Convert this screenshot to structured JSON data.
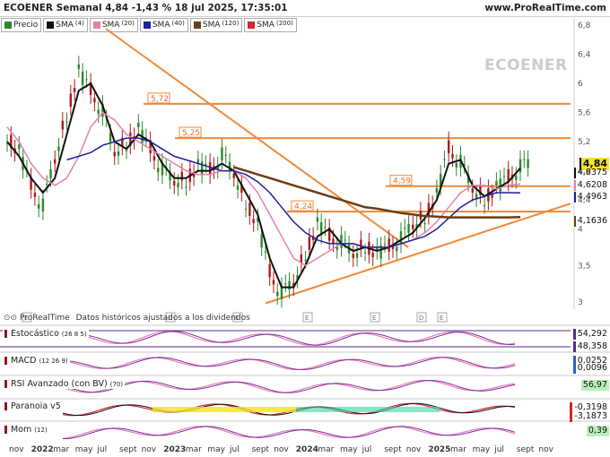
{
  "header": {
    "title": "ECOENER Semanal 4,84 -1,43 % 18 jul 2025, 17:35:01",
    "site": "www.ProRealTime.com"
  },
  "legend": [
    {
      "label": "Precio",
      "sup": "",
      "color": "#2a8a2a"
    },
    {
      "label": "SMA",
      "sup": "(4)",
      "color": "#111111"
    },
    {
      "label": "SMA",
      "sup": "(20)",
      "color": "#e77fb0"
    },
    {
      "label": "SMA",
      "sup": "(40)",
      "color": "#1f1fa0"
    },
    {
      "label": "SMA",
      "sup": "(120)",
      "color": "#6b3d14"
    },
    {
      "label": "SMA",
      "sup": "(200)",
      "color": "#d9232e"
    }
  ],
  "watermark": "ECOENER",
  "footnote": {
    "brand": "ProRealTime",
    "text": "Datos históricos ajustados a los dividendos"
  },
  "price_tags": [
    {
      "text": "4,84",
      "bg": "#f5e12a",
      "bold": true
    },
    {
      "text": "4,8375",
      "bg": "#ffffff"
    },
    {
      "text": "4,6208",
      "bg": "#ffffff"
    },
    {
      "text": "4,4963",
      "bg": "#ffffff"
    },
    {
      "text": "4,1636",
      "bg": "#ffffff"
    }
  ],
  "level_labels": [
    "5,72",
    "5,25",
    "4,59",
    "4,24"
  ],
  "panels": {
    "stoch": {
      "label": "Estocástico",
      "sup": "(26 8 5)",
      "v1": "54,292",
      "v2": "48,358"
    },
    "macd": {
      "label": "MACD",
      "sup": "(12 26 9)",
      "v1": "0,0252",
      "v2": "0,0096"
    },
    "rsi": {
      "label": "RSI Avanzado (con BV)",
      "sup": "(70)",
      "v1": "56,97"
    },
    "paranoia": {
      "label": "Paranoia v5",
      "v1": "-0,3198",
      "v2": "-3,1873"
    },
    "mom": {
      "label": "Mom",
      "sup": "(12)",
      "v1": "0,39"
    }
  },
  "chart_data": {
    "type": "line",
    "title": "ECOENER Semanal 4,84 -1,43 % 18 jul 2025, 17:35:01",
    "y_ticks": [
      "6,8",
      "6,4",
      "6",
      "5,6",
      "5,2",
      "4,8",
      "4,4",
      "4",
      "3,5",
      "3"
    ],
    "ylim": [
      2.9,
      6.9
    ],
    "x_ticks": [
      "nov",
      "2022",
      "mar",
      "may",
      "jul",
      "sept",
      "nov",
      "2023",
      "mar",
      "may",
      "jul",
      "sept",
      "nov",
      "2024",
      "mar",
      "may",
      "jul",
      "sept",
      "nov",
      "2025",
      "mar",
      "may",
      "jul",
      "sept",
      "nov"
    ],
    "horizontal_levels": [
      5.72,
      5.25,
      4.59,
      4.24
    ],
    "price_series": {
      "name": "Precio",
      "x": [
        "2021-10",
        "2021-12",
        "2022-02",
        "2022-03",
        "2022-04",
        "2022-05",
        "2022-06",
        "2022-07",
        "2022-08",
        "2022-09",
        "2022-10",
        "2022-11",
        "2022-12",
        "2023-01",
        "2023-02",
        "2023-03",
        "2023-04",
        "2023-05",
        "2023-06",
        "2023-07",
        "2023-08",
        "2023-09",
        "2023-10",
        "2023-11",
        "2023-12",
        "2024-01",
        "2024-02",
        "2024-03",
        "2024-04",
        "2024-05",
        "2024-06",
        "2024-07",
        "2024-08",
        "2024-09",
        "2024-10",
        "2024-11",
        "2024-12",
        "2025-01",
        "2025-02",
        "2025-03",
        "2025-04",
        "2025-05",
        "2025-06",
        "2025-07"
      ],
      "y": [
        5.3,
        5.1,
        4.6,
        4.3,
        4.9,
        5.6,
        6.2,
        5.9,
        5.6,
        5.0,
        5.2,
        5.4,
        5.1,
        4.8,
        4.6,
        4.7,
        4.9,
        4.8,
        5.0,
        4.7,
        4.4,
        4.1,
        3.4,
        3.1,
        3.2,
        3.7,
        4.1,
        3.9,
        3.8,
        3.6,
        3.8,
        3.7,
        3.75,
        3.85,
        4.0,
        4.2,
        4.5,
        5.1,
        4.9,
        4.5,
        4.45,
        4.6,
        4.7,
        4.84
      ]
    },
    "series": [
      {
        "name": "SMA (4)",
        "y": [
          5.2,
          5.0,
          4.7,
          4.5,
          4.7,
          5.3,
          5.9,
          6.0,
          5.7,
          5.2,
          5.1,
          5.3,
          5.2,
          4.9,
          4.7,
          4.7,
          4.8,
          4.8,
          4.9,
          4.8,
          4.5,
          4.2,
          3.6,
          3.2,
          3.2,
          3.5,
          3.9,
          4.0,
          3.8,
          3.7,
          3.75,
          3.7,
          3.75,
          3.85,
          3.95,
          4.15,
          4.4,
          4.9,
          4.95,
          4.6,
          4.45,
          4.55,
          4.65,
          4.8375
        ]
      },
      {
        "name": "SMA (20)",
        "y": [
          5.4,
          5.2,
          4.9,
          4.7,
          4.6,
          4.7,
          5.0,
          5.4,
          5.6,
          5.5,
          5.3,
          5.2,
          5.1,
          5.0,
          4.9,
          4.8,
          4.75,
          4.75,
          4.8,
          4.8,
          4.7,
          4.5,
          4.2,
          3.9,
          3.6,
          3.5,
          3.6,
          3.7,
          3.8,
          3.8,
          3.75,
          3.75,
          3.75,
          3.8,
          3.85,
          3.95,
          4.1,
          4.3,
          4.5,
          4.6,
          4.6,
          4.55,
          4.6,
          4.6208
        ]
      },
      {
        "name": "SMA (40)",
        "y": [
          null,
          null,
          null,
          null,
          null,
          4.95,
          5.0,
          5.05,
          5.15,
          5.2,
          5.25,
          5.25,
          5.2,
          5.1,
          5.0,
          4.95,
          4.9,
          4.85,
          4.8,
          4.8,
          4.75,
          4.65,
          4.5,
          4.3,
          4.1,
          3.95,
          3.85,
          3.8,
          3.8,
          3.8,
          3.75,
          3.75,
          3.75,
          3.8,
          3.85,
          3.9,
          4.0,
          4.15,
          4.3,
          4.4,
          4.45,
          4.5,
          4.5,
          4.4963
        ]
      },
      {
        "name": "SMA (120)",
        "y": [
          null,
          null,
          null,
          null,
          null,
          null,
          null,
          null,
          null,
          null,
          null,
          null,
          null,
          null,
          null,
          null,
          null,
          null,
          null,
          4.85,
          4.8,
          4.75,
          4.7,
          4.65,
          4.6,
          4.55,
          4.5,
          4.45,
          4.4,
          4.35,
          4.3,
          4.28,
          4.25,
          4.22,
          4.2,
          4.18,
          4.17,
          4.16,
          4.16,
          4.16,
          4.16,
          4.16,
          4.16,
          4.1636
        ]
      }
    ]
  }
}
